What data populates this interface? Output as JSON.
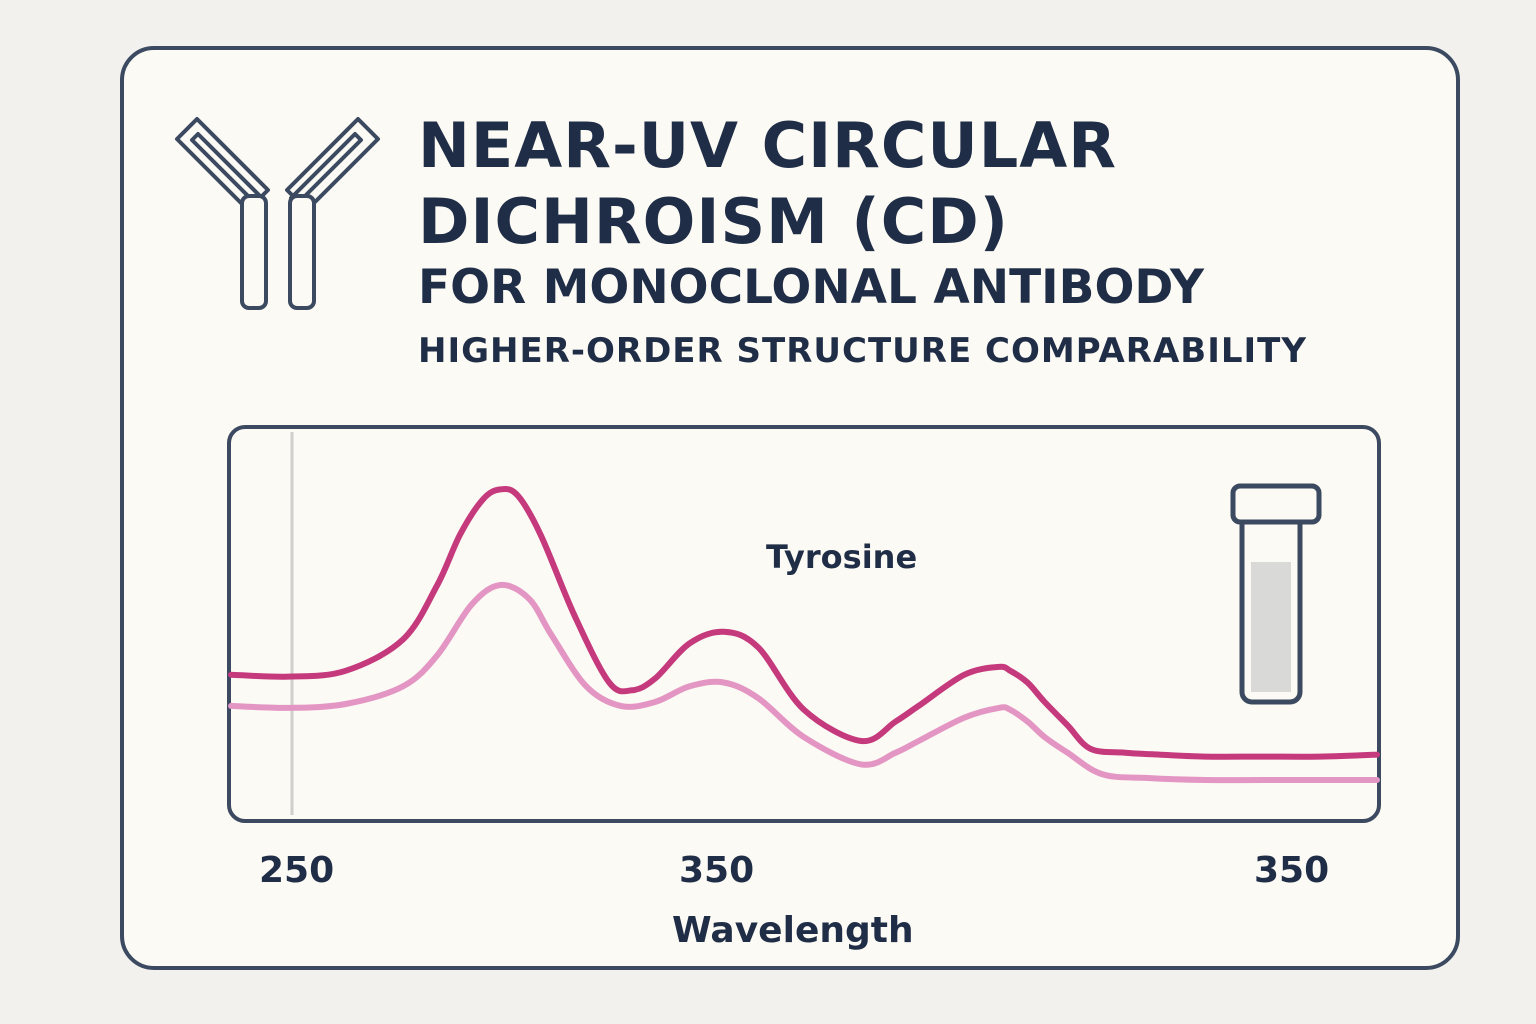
{
  "header": {
    "title_line1": "NEAR-UV CIRCULAR",
    "title_line2": "DICHROISM (CD)",
    "subtitle": "FOR MONOCLONAL ANTIBODY",
    "subtitle2": "HIGHER-ORDER STRUCTURE COMPARABILITY"
  },
  "icons": {
    "left": "antibody-icon",
    "right": "sample-vial-icon"
  },
  "colors": {
    "text": "#1f2d47",
    "frame": "#3b4a60",
    "series_dark": "#c5397d",
    "series_light": "#e396c3",
    "card": "#fcfaf4"
  },
  "chart_data": {
    "type": "line",
    "xlabel": "Wavelength",
    "ylabel": "",
    "xticks": [
      "250",
      "350",
      "350"
    ],
    "annotations": [
      {
        "text": "Tyrosine"
      }
    ],
    "grid": false,
    "legend": "none",
    "yaxis_shown": false,
    "x_range": [
      0,
      100
    ],
    "y_range": [
      0,
      100
    ],
    "series": [
      {
        "color": "#c5397d",
        "x": [
          0,
          5,
          10,
          15,
          18,
          20,
          22,
          23.5,
          25,
          27,
          30,
          33,
          35,
          37,
          40,
          43,
          46,
          50,
          55,
          58,
          60,
          64,
          67,
          68,
          69.5,
          71,
          73,
          75,
          78,
          81,
          85,
          90,
          95,
          100
        ],
        "y": [
          37,
          36.5,
          38,
          46,
          60,
          73,
          82,
          84.5,
          83,
          73,
          52,
          35,
          33,
          36,
          45,
          48,
          44,
          28,
          20,
          25,
          29,
          37,
          39,
          38,
          35,
          30,
          24,
          18,
          17,
          16.5,
          16,
          16,
          16,
          16.5
        ]
      },
      {
        "color": "#e396c3",
        "x": [
          0,
          5,
          10,
          15,
          18,
          21,
          23.5,
          26,
          28,
          31,
          34,
          37,
          40,
          43,
          46,
          50,
          55,
          58,
          60,
          64,
          67,
          68,
          69.5,
          71,
          73,
          76,
          80,
          85,
          90,
          95,
          100
        ],
        "y": [
          29,
          28.5,
          29.5,
          34,
          42,
          55,
          60,
          56.5,
          47,
          34,
          29,
          30,
          34,
          35,
          31,
          21,
          14,
          17,
          20,
          26,
          28.5,
          28,
          25,
          21,
          17,
          11.5,
          10.5,
          10,
          10,
          10,
          10
        ]
      }
    ]
  }
}
